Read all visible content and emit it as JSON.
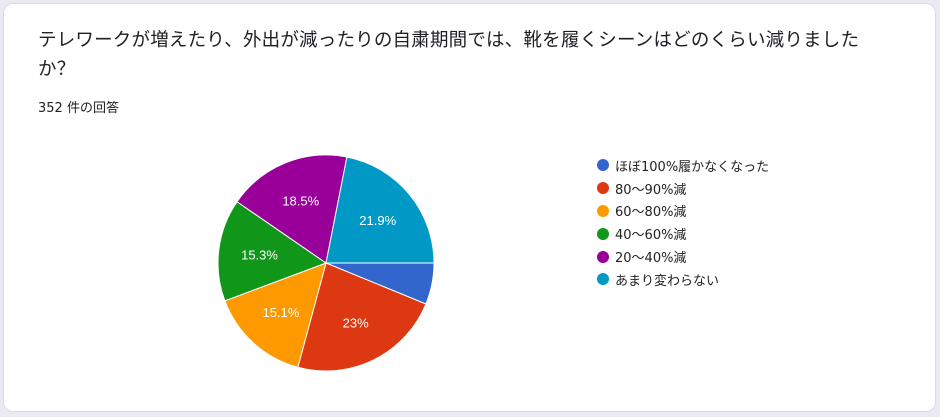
{
  "question": {
    "title": "テレワークが増えたり、外出が減ったりの自粛期間では、靴を履くシーンはどのくらい減りましたか？",
    "response_count": "352 件の回答"
  },
  "chart_data": {
    "type": "pie",
    "title": "テレワークが増えたり、外出が減ったりの自粛期間では、靴を履くシーンはどのくらい減りましたか？",
    "total_responses": 352,
    "legend_position": "right",
    "categories": [
      "ほぼ100%履かなくなった",
      "80〜90%減",
      "60〜80%減",
      "40〜60%減",
      "20〜40%減",
      "あまり変わらない"
    ],
    "values": [
      6.2,
      23,
      15.1,
      15.3,
      18.5,
      21.9
    ],
    "labels": [
      "",
      "23%",
      "15.1%",
      "15.3%",
      "18.5%",
      "21.9%"
    ],
    "colors": [
      "#3366cc",
      "#dc3912",
      "#ff9900",
      "#109618",
      "#990099",
      "#0099c6"
    ]
  }
}
